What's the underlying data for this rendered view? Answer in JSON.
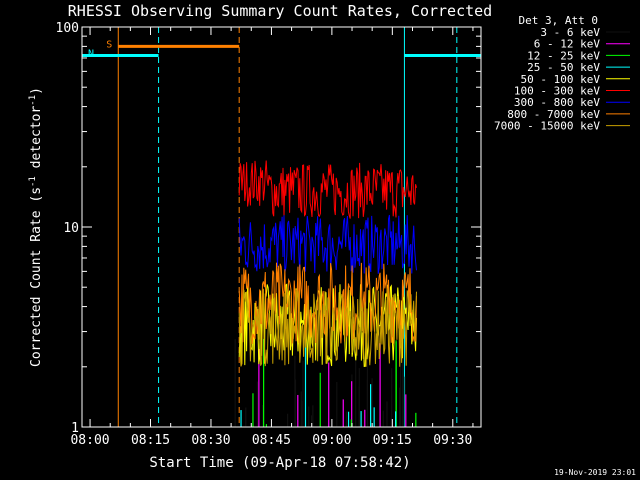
{
  "chart_data": {
    "type": "line",
    "title": "RHESSI Observing Summary Count Rates, Corrected",
    "xlabel": "Start Time (09-Apr-18 07:58:42)",
    "ylabel_main": "Corrected Count Rate (s",
    "ylabel_sup1": "-1",
    "ylabel_mid": " detector",
    "ylabel_sup2": "-1",
    "ylabel_end": ")",
    "y_scale": "log",
    "ylim": [
      1,
      100
    ],
    "xlim_minutes": [
      -2,
      97
    ],
    "x_ticks": [
      {
        "minute": 0,
        "label": "08:00"
      },
      {
        "minute": 15,
        "label": "08:15"
      },
      {
        "minute": 30,
        "label": "08:30"
      },
      {
        "minute": 45,
        "label": "08:45"
      },
      {
        "minute": 60,
        "label": "09:00"
      },
      {
        "minute": 75,
        "label": "09:15"
      },
      {
        "minute": 90,
        "label": "09:30"
      }
    ],
    "y_ticks": [
      {
        "value": 1,
        "label": "1"
      },
      {
        "value": 10,
        "label": "10"
      },
      {
        "value": 100,
        "label": "100"
      }
    ],
    "legend_header": "Det 3, Att 0",
    "legend_position": "right",
    "series": [
      {
        "name": "3 - 6 keV",
        "color": "#000000",
        "level": 1.0,
        "range": [
          36,
          81
        ]
      },
      {
        "name": "6 - 12 keV",
        "color": "#ff00ff",
        "level": 1.0,
        "range": [
          37,
          81
        ]
      },
      {
        "name": "12 - 25 keV",
        "color": "#00ff00",
        "level": 1.0,
        "range": [
          37,
          81
        ]
      },
      {
        "name": "25 - 50 keV",
        "color": "#00ffff",
        "level": 1.0,
        "range": [
          37,
          81
        ]
      },
      {
        "name": "50 - 100 keV",
        "color": "#ffff00",
        "level": 3.3,
        "range": [
          37,
          81
        ]
      },
      {
        "name": "100 - 300 keV",
        "color": "#ff0000",
        "level": 14.5,
        "range": [
          37,
          81
        ]
      },
      {
        "name": "300 - 800 keV",
        "color": "#0000ff",
        "level": 7.8,
        "range": [
          37,
          81
        ]
      },
      {
        "name": "800 - 7000 keV",
        "color": "#ff8000",
        "level": 4.0,
        "range": [
          37,
          81
        ]
      },
      {
        "name": "7000 - 15000 keV",
        "color": "#c8a000",
        "level": 3.0,
        "range": [
          37,
          81
        ]
      }
    ],
    "flags": [
      {
        "label": "S",
        "color": "#ff8000",
        "start_minute": 7,
        "end_minute": 37,
        "level": 80
      },
      {
        "label": "N",
        "color": "#00ffff",
        "start_minute": -2,
        "end_minute": 17,
        "level": 72
      },
      {
        "label": "",
        "color": "#00ffff",
        "start_minute": 78,
        "end_minute": 97,
        "level": 72
      }
    ],
    "vertical_markers": [
      {
        "minute": -2,
        "color": "#00ffff",
        "style": "solid"
      },
      {
        "minute": 7,
        "color": "#ff8000",
        "style": "solid"
      },
      {
        "minute": 17,
        "color": "#00ffff",
        "style": "dashed"
      },
      {
        "minute": 37,
        "color": "#ff8000",
        "style": "dashed"
      },
      {
        "minute": 78,
        "color": "#00ffff",
        "style": "solid"
      },
      {
        "minute": 91,
        "color": "#00ffff",
        "style": "dashed"
      }
    ]
  },
  "footer": {
    "timestamp": "19-Nov-2019 23:01"
  }
}
